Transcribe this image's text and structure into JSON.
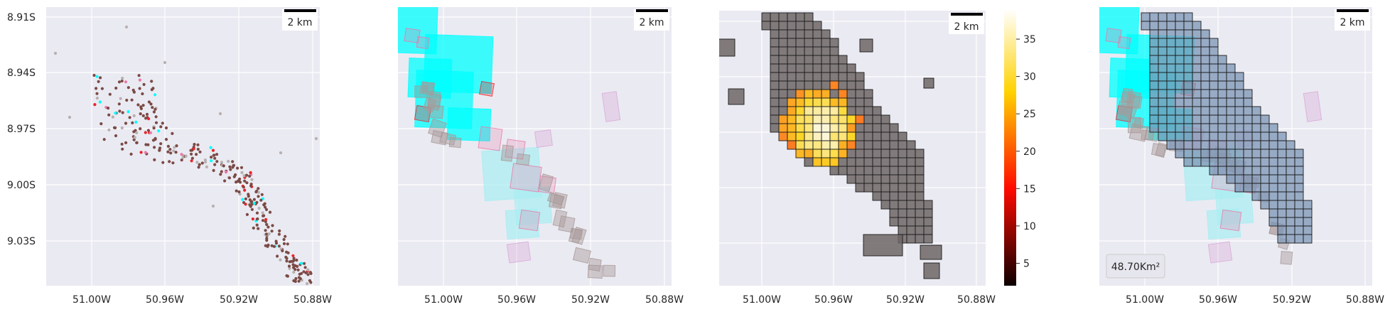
{
  "panels": [
    {
      "id": "points",
      "y_ticks": [
        "8.91S",
        "8.94S",
        "8.97S",
        "9.00S",
        "9.03S"
      ],
      "x_ticks": [
        "51.00W",
        "50.96W",
        "50.92W",
        "50.88W"
      ],
      "scalebar": "2 km"
    },
    {
      "id": "footprints",
      "x_ticks": [
        "51.00W",
        "50.96W",
        "50.92W",
        "50.88W"
      ],
      "scalebar": "2 km"
    },
    {
      "id": "density",
      "x_ticks": [
        "51.00W",
        "50.96W",
        "50.92W",
        "50.88W"
      ],
      "scalebar": "2 km",
      "colorbar": {
        "colormap": "hot",
        "ticks": [
          "5",
          "10",
          "15",
          "20",
          "25",
          "30",
          "35"
        ],
        "range": [
          2,
          39
        ]
      }
    },
    {
      "id": "coverage",
      "x_ticks": [
        "51.00W",
        "50.96W",
        "50.92W",
        "50.88W"
      ],
      "scalebar": "2 km",
      "area_label": "48.70Km²"
    }
  ],
  "colors": {
    "axes_bg": "#eaeaf2",
    "cyan": "#00ffff",
    "light_cyan": "#a8eef2",
    "brown": "#7b4a45",
    "red": "#e8242a",
    "pink": "#e87aa8",
    "grey": "#b8b0b0",
    "cell_grey": "#6e6666",
    "coverage_blue": "#7c95b5"
  }
}
